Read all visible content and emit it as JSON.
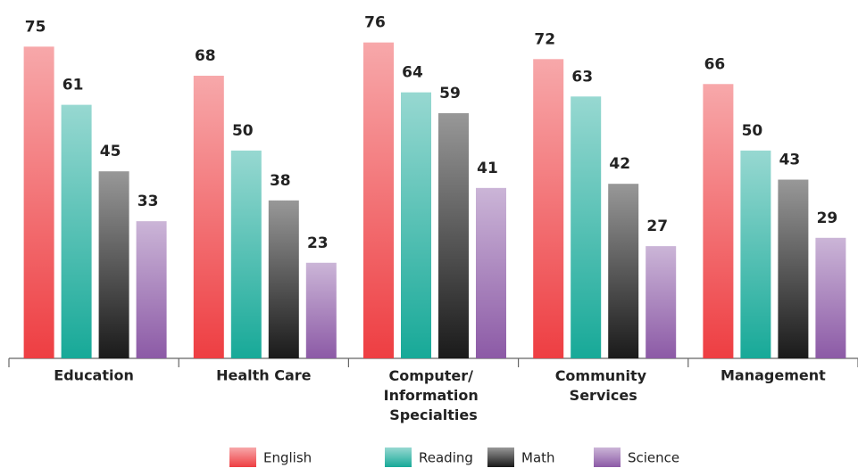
{
  "chart_data": {
    "type": "bar",
    "categories": [
      "Education",
      "Health Care",
      "Computer/ Information Specialties",
      "Community Services",
      "Management"
    ],
    "series": [
      {
        "name": "English",
        "color": "#ee3e42",
        "values": [
          75,
          68,
          76,
          72,
          66
        ]
      },
      {
        "name": "Reading",
        "color": "#17a998",
        "values": [
          61,
          50,
          64,
          63,
          50
        ]
      },
      {
        "name": "Math",
        "color": "#1a1a1a",
        "values": [
          45,
          38,
          59,
          42,
          43
        ]
      },
      {
        "name": "Science",
        "color": "#8c5aa6",
        "values": [
          33,
          23,
          41,
          27,
          29
        ]
      }
    ],
    "ylim": [
      0,
      80
    ],
    "legend": "bottom"
  }
}
